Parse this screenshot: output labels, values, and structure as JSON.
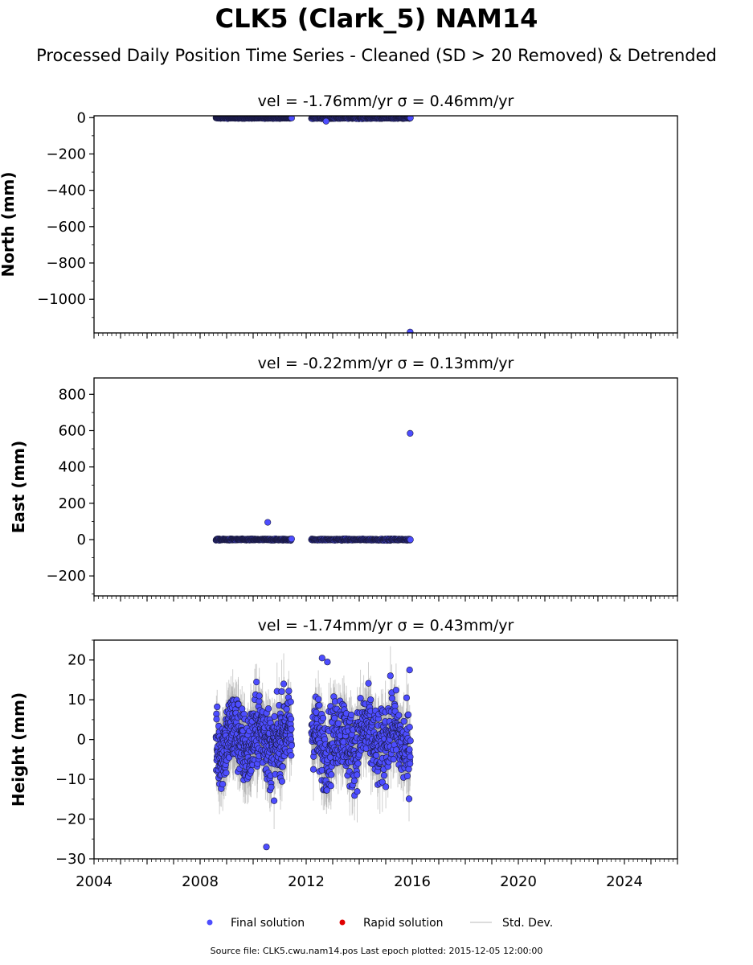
{
  "header": {
    "title": "CLK5 (Clark_5) NAM14",
    "subtitle": "Processed Daily Position Time Series - Cleaned (SD > 20 Removed) & Detrended"
  },
  "footer": {
    "source": "Source file: CLK5.cwu.nam14.pos  Last epoch plotted: 2015-12-05 12:00:00"
  },
  "legend": {
    "final": "Final solution",
    "rapid": "Rapid solution",
    "std": "Std. Dev."
  },
  "colors": {
    "final": "#4d4dff",
    "rapid": "#e00000",
    "std": "#b0b0b0"
  },
  "chart_data": [
    {
      "type": "scatter",
      "title": "vel = -1.76mm/yr   σ = 0.46mm/yr",
      "ylabel": "North (mm)",
      "ylim": [
        -1185,
        10
      ],
      "xlim": [
        2004,
        2026
      ],
      "yticks": [
        0,
        -200,
        -400,
        -600,
        -800,
        -1000
      ],
      "yticklabels": [
        "0",
        "−200",
        "−400",
        "−600",
        "−800",
        "−1000"
      ],
      "segments": [
        {
          "x_start": 2008.6,
          "x_end": 2011.45,
          "y_center": -2,
          "y_spread": 4
        },
        {
          "x_start": 2012.2,
          "x_end": 2015.93,
          "y_center": -2,
          "y_spread": 6
        }
      ],
      "outliers": [
        {
          "x": 2015.92,
          "y": -1180
        },
        {
          "x": 2012.75,
          "y": -20
        }
      ]
    },
    {
      "type": "scatter",
      "title": "vel = -0.22mm/yr   σ = 0.13mm/yr",
      "ylabel": "East (mm)",
      "ylim": [
        -310,
        890
      ],
      "xlim": [
        2004,
        2026
      ],
      "yticks": [
        800,
        600,
        400,
        200,
        0,
        -200
      ],
      "yticklabels": [
        "800",
        "600",
        "400",
        "200",
        "0",
        "−200"
      ],
      "segments": [
        {
          "x_start": 2008.6,
          "x_end": 2011.45,
          "y_center": 0,
          "y_spread": 6
        },
        {
          "x_start": 2012.2,
          "x_end": 2015.93,
          "y_center": 0,
          "y_spread": 6
        }
      ],
      "outliers": [
        {
          "x": 2015.92,
          "y": 585
        },
        {
          "x": 2010.55,
          "y": 95
        }
      ]
    },
    {
      "type": "scatter",
      "title": "vel = -1.74mm/yr   σ = 0.43mm/yr",
      "ylabel": "Height (mm)",
      "ylim": [
        -30,
        25
      ],
      "xlim": [
        2004,
        2026
      ],
      "yticks": [
        20,
        10,
        0,
        -10,
        -20,
        -30
      ],
      "yticklabels": [
        "20",
        "10",
        "0",
        "−10",
        "−20",
        "−30"
      ],
      "xticks": [
        2004,
        2008,
        2012,
        2016,
        2020,
        2024
      ],
      "xticklabels": [
        "2004",
        "2008",
        "2012",
        "2016",
        "2020",
        "2024"
      ],
      "segments": [
        {
          "x_start": 2008.6,
          "x_end": 2011.45,
          "y_center": 0,
          "y_spread": 15
        },
        {
          "x_start": 2012.2,
          "x_end": 2015.93,
          "y_center": 0,
          "y_spread": 15
        }
      ],
      "outliers": [
        {
          "x": 2010.5,
          "y": -27
        },
        {
          "x": 2012.6,
          "y": 20.5
        },
        {
          "x": 2012.8,
          "y": 19.5
        },
        {
          "x": 2015.9,
          "y": 17.5
        }
      ]
    }
  ]
}
